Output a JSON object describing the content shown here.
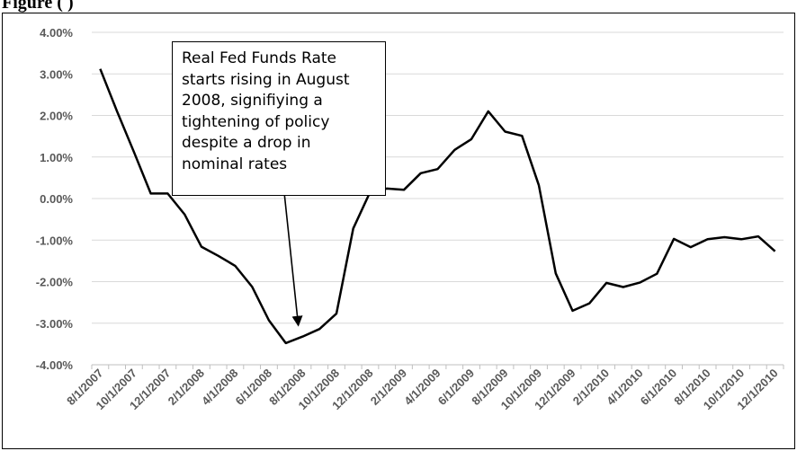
{
  "figure": {
    "title": "Figure                                          (                )"
  },
  "chart_data": {
    "type": "line",
    "title": "",
    "xlabel": "",
    "ylabel": "",
    "ylim": [
      -4.0,
      4.0
    ],
    "y_ticks": [
      "4.00%",
      "3.00%",
      "2.00%",
      "1.00%",
      "0.00%",
      "-1.00%",
      "-2.00%",
      "-3.00%",
      "-4.00%"
    ],
    "x_tick_labels": [
      "8/1/2007",
      "10/1/2007",
      "12/1/2007",
      "2/1/2008",
      "4/1/2008",
      "6/1/2008",
      "8/1/2008",
      "10/1/2008",
      "12/1/2008",
      "2/1/2009",
      "4/1/2009",
      "6/1/2009",
      "8/1/2009",
      "10/1/2009",
      "12/1/2009",
      "2/1/2010",
      "4/1/2010",
      "6/1/2010",
      "8/1/2010",
      "10/1/2010",
      "12/1/2010"
    ],
    "grid": true,
    "line_color": "#000000",
    "series": [
      {
        "x": [
          "8/1/2007",
          "9/1/2007",
          "10/1/2007",
          "11/1/2007",
          "12/1/2007",
          "1/1/2008",
          "2/1/2008",
          "3/1/2008",
          "4/1/2008",
          "5/1/2008",
          "6/1/2008",
          "7/1/2008",
          "8/1/2008",
          "9/1/2008",
          "10/1/2008",
          "11/1/2008",
          "12/1/2008",
          "1/1/2009",
          "2/1/2009",
          "3/1/2009",
          "4/1/2009",
          "5/1/2009",
          "6/1/2009",
          "7/1/2009",
          "8/1/2009",
          "9/1/2009",
          "10/1/2009",
          "11/1/2009",
          "12/1/2009",
          "1/1/2010",
          "2/1/2010",
          "3/1/2010",
          "4/1/2010",
          "5/1/2010",
          "6/1/2010",
          "7/1/2010",
          "8/1/2010",
          "9/1/2010",
          "10/1/2010",
          "11/1/2010",
          "12/1/2010"
        ],
        "values": [
          3.12,
          2.1,
          1.12,
          0.12,
          0.12,
          -0.38,
          -1.16,
          -1.38,
          -1.62,
          -2.12,
          -2.93,
          -3.48,
          -3.32,
          -3.14,
          -2.77,
          -0.72,
          0.16,
          0.24,
          0.21,
          0.61,
          0.71,
          1.17,
          1.43,
          2.1,
          1.61,
          1.51,
          0.32,
          -1.8,
          -2.7,
          -2.52,
          -2.03,
          -2.13,
          -2.02,
          -1.81,
          -0.97,
          -1.17,
          -0.98,
          -0.93,
          -0.98,
          -0.91,
          -1.27
        ]
      }
    ],
    "annotation": {
      "lines": [
        "Real Fed Funds Rate",
        "starts rising in August",
        "2008, signifiying a",
        "tightening of policy",
        "despite a drop in",
        "nominal rates"
      ],
      "points_to": "8/1/2008"
    }
  }
}
